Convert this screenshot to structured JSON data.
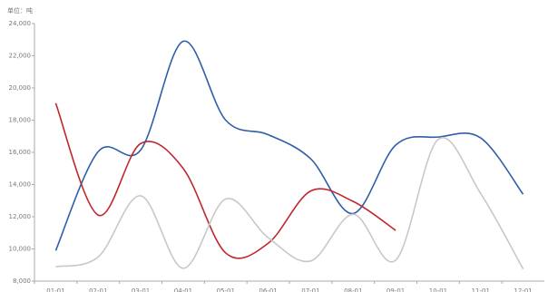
{
  "chart_data": {
    "type": "line",
    "unit_label": "单位：吨",
    "categories": [
      "01-01",
      "02-01",
      "03-01",
      "04-01",
      "05-01",
      "06-01",
      "07-01",
      "08-01",
      "09-01",
      "10-01",
      "11-01",
      "12-01"
    ],
    "series": [
      {
        "color": "#2f5ea8",
        "values": [
          9900,
          16050,
          16150,
          22900,
          18000,
          17100,
          15600,
          12200,
          16450,
          16950,
          16900,
          13400
        ]
      },
      {
        "color": "#c0272d",
        "values": [
          19050,
          12100,
          16550,
          15000,
          9750,
          10350,
          13600,
          12950,
          11150,
          null,
          null,
          null
        ]
      },
      {
        "color": "#c8c8c8",
        "values": [
          8900,
          9500,
          13300,
          8800,
          13100,
          10700,
          9250,
          12150,
          9300,
          16800,
          13450,
          8750
        ]
      }
    ],
    "ylim": [
      8000,
      24000
    ],
    "yticks": [
      {
        "value": 8000,
        "label": "8,000"
      },
      {
        "value": 10000,
        "label": "10,000"
      },
      {
        "value": 12000,
        "label": "12,000"
      },
      {
        "value": 14000,
        "label": "14,000"
      },
      {
        "value": 16000,
        "label": "16,000"
      },
      {
        "value": 18000,
        "label": "18,000"
      },
      {
        "value": 20000,
        "label": "20,000"
      },
      {
        "value": 22000,
        "label": "22,000"
      },
      {
        "value": 24000,
        "label": "24,000"
      }
    ],
    "grid": false
  }
}
